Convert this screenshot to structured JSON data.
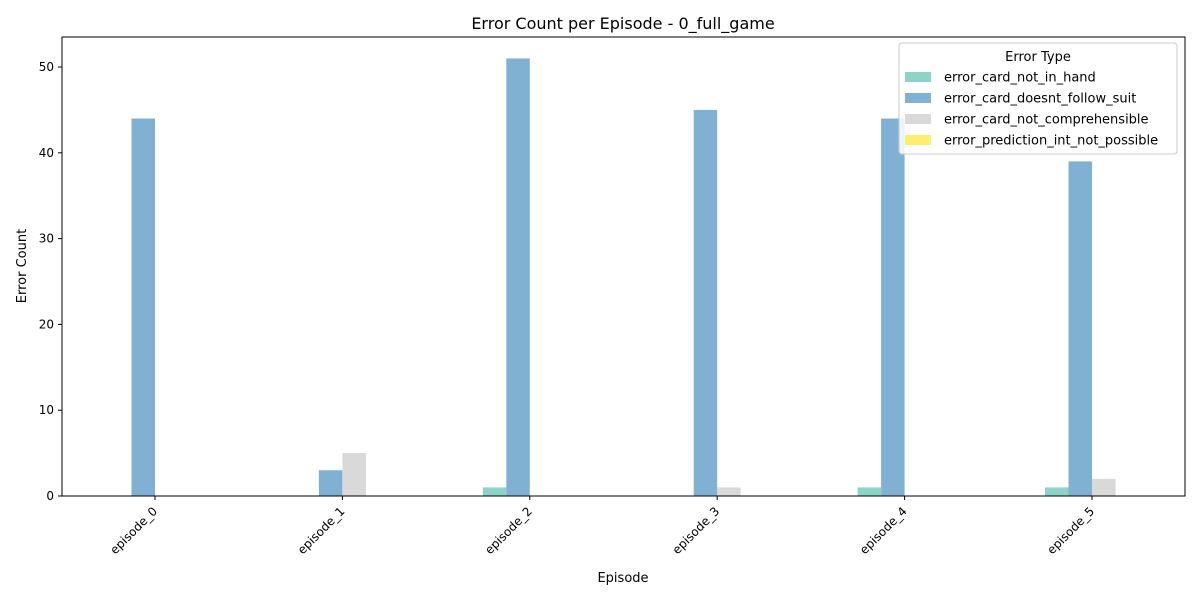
{
  "chart_data": {
    "type": "bar",
    "title": "Error Count per Episode - 0_full_game",
    "xlabel": "Episode",
    "ylabel": "Error Count",
    "categories": [
      "episode_0",
      "episode_1",
      "episode_2",
      "episode_3",
      "episode_4",
      "episode_5"
    ],
    "ylim": [
      0,
      53.5
    ],
    "yticks": [
      0,
      10,
      20,
      30,
      40,
      50
    ],
    "grid": false,
    "legend": {
      "title": "Error Type",
      "placement": "top-right"
    },
    "series": [
      {
        "name": "error_card_not_in_hand",
        "color": "#8dd3c7",
        "values": [
          0,
          0,
          1,
          0,
          1,
          1
        ]
      },
      {
        "name": "error_card_doesnt_follow_suit",
        "color": "#80b1d3",
        "values": [
          44,
          3,
          51,
          45,
          44,
          39
        ]
      },
      {
        "name": "error_card_not_comprehensible",
        "color": "#d9d9d9",
        "values": [
          0,
          5,
          0,
          1,
          0,
          2
        ]
      },
      {
        "name": "error_prediction_int_not_possible",
        "color": "#ffed6f",
        "values": [
          0,
          0,
          0,
          0,
          0,
          0
        ]
      }
    ]
  }
}
